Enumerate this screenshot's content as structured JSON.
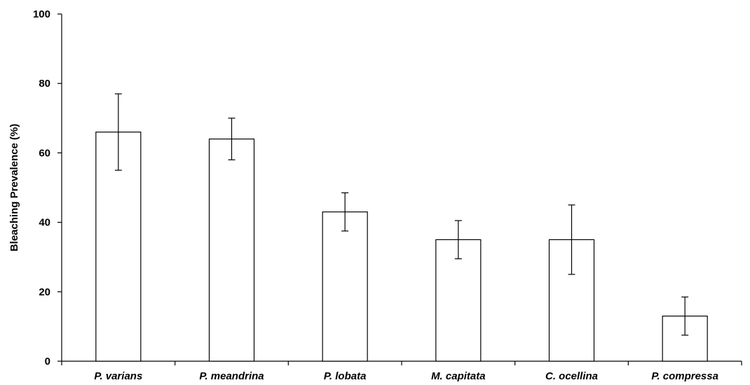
{
  "chart_data": {
    "type": "bar",
    "title": "",
    "xlabel": "",
    "ylabel": "Bleaching Prevalence (%)",
    "ylim": [
      0,
      100
    ],
    "yticks": [
      0,
      20,
      40,
      60,
      80,
      100
    ],
    "grid": false,
    "legend": "none",
    "categories": [
      "P. varians",
      "P. meandrina",
      "P. lobata",
      "M. capitata",
      "C. ocellina",
      "P. compressa"
    ],
    "values": [
      66,
      64,
      43,
      35,
      35,
      13
    ],
    "errors": [
      11,
      6,
      5.5,
      5.5,
      10,
      5.5
    ],
    "bar_fill": "#ffffff",
    "bar_stroke": "#000000"
  }
}
